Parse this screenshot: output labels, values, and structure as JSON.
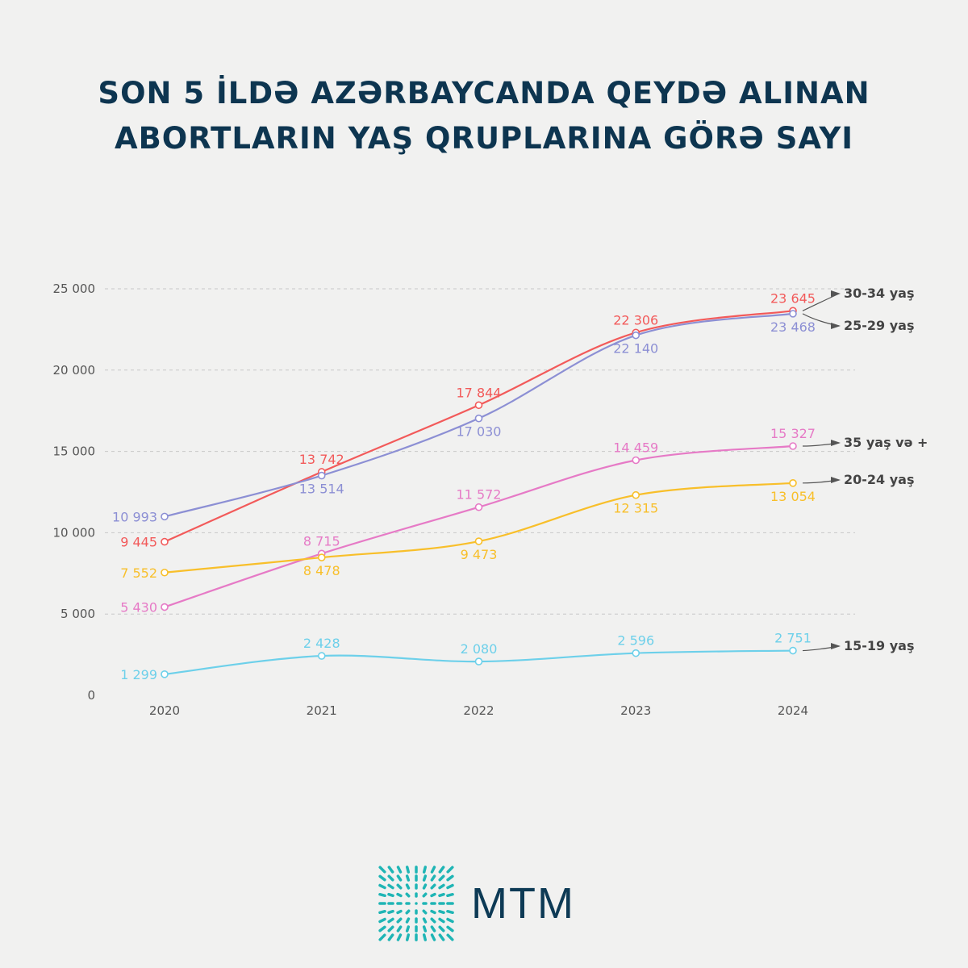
{
  "chart_data": {
    "type": "line",
    "title_lines": [
      "SON 5 İLDƏ AZƏRBAYCANDA QEYDƏ ALINAN",
      "ABORTLARIN YAŞ QRUPLARINA GÖRƏ SAYI"
    ],
    "x": [
      "2020",
      "2021",
      "2022",
      "2023",
      "2024"
    ],
    "ylim": [
      0,
      25000
    ],
    "yticks": [
      0,
      5000,
      10000,
      15000,
      20000,
      25000
    ],
    "ytick_labels": [
      "0",
      "5 000",
      "10 000",
      "15 000",
      "20 000",
      "25 000"
    ],
    "grid": true,
    "series": [
      {
        "name": "30-34",
        "legend": "30-34 yaş",
        "color": "#f25a5a",
        "values": [
          9445,
          13742,
          17844,
          22306,
          23645
        ],
        "labels": [
          "9 445",
          "13 742",
          "17 844",
          "22 306",
          "23 645"
        ]
      },
      {
        "name": "25-29",
        "legend": "25-29 yaş",
        "color": "#8c8fd4",
        "values": [
          10993,
          13514,
          17030,
          22140,
          23468
        ],
        "labels": [
          "10 993",
          "13 514",
          "17 030",
          "22 140",
          "23 468"
        ]
      },
      {
        "name": "35+",
        "legend": "35 yaş və +",
        "color": "#e67ac6",
        "values": [
          5430,
          8715,
          11572,
          14459,
          15327
        ],
        "labels": [
          "5 430",
          "8 715",
          "11 572",
          "14 459",
          "15 327"
        ]
      },
      {
        "name": "20-24",
        "legend": "20-24 yaş",
        "color": "#f8bf2a",
        "values": [
          7552,
          8478,
          9473,
          12315,
          13054
        ],
        "labels": [
          "7 552",
          "8 478",
          "9 473",
          "12 315",
          "13 054"
        ]
      },
      {
        "name": "15-19",
        "legend": "15-19 yaş",
        "color": "#6dd0ea",
        "values": [
          1299,
          2428,
          2080,
          2596,
          2751
        ],
        "labels": [
          "1 299",
          "2 428",
          "2 080",
          "2 596",
          "2 751"
        ]
      }
    ]
  },
  "logo": {
    "text": "MTM",
    "color": "#1fb5b5"
  }
}
